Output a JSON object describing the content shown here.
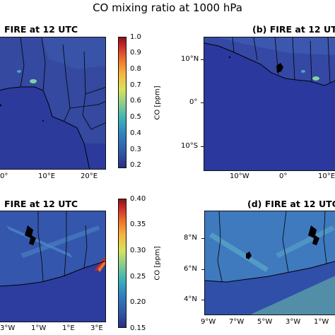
{
  "figure": {
    "title": "CO mixing ratio at 1000 hPa"
  },
  "panels": {
    "a": {
      "title": "FIRE at 12 UTC",
      "xticks": [
        "0°",
        "10°E",
        "20°E"
      ]
    },
    "b": {
      "title": "(b) FIRE at 12 UTC",
      "xticks": [
        "10°W",
        "0°",
        "10°E"
      ],
      "yticks": [
        "10°N",
        "0°",
        "10°S"
      ]
    },
    "c": {
      "title": "FIRE at 12 UTC",
      "xticks": [
        "3°W",
        "1°W",
        "1°E",
        "3°E"
      ]
    },
    "d": {
      "title": "(d) FIRE at 12 UTC",
      "xticks": [
        "9°W",
        "7°W",
        "5°W",
        "3°W",
        "1°W"
      ],
      "yticks": [
        "8°N",
        "6°N",
        "4°N"
      ]
    }
  },
  "colorbars": {
    "top": {
      "label": "CO [ppm]",
      "ticks": [
        "1.0",
        "0.9",
        "0.8",
        "0.7",
        "0.6",
        "0.5",
        "0.4",
        "0.3",
        "0.2"
      ]
    },
    "bottom": {
      "label": "CO [ppm]",
      "ticks": [
        "0.40",
        "0.35",
        "0.30",
        "0.25",
        "0.20",
        "0.15"
      ]
    }
  },
  "colors": {
    "background_field": "#2d3c9a",
    "ocean_field": "#2a37a0",
    "land_plume": "#3c67b5",
    "coastline": "#000000",
    "colormap": [
      "#2a2d7f",
      "#3152a3",
      "#2f80c1",
      "#3fb3b5",
      "#8ed08b",
      "#d8e35b",
      "#f6b53f",
      "#ec6c2a",
      "#c6262a",
      "#8b1313"
    ]
  }
}
